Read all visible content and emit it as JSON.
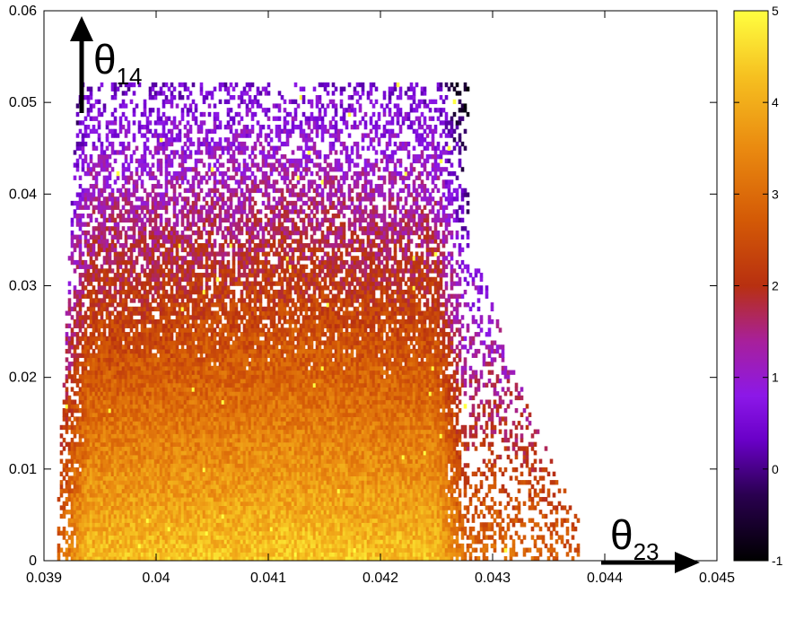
{
  "chart_data": {
    "type": "heatmap",
    "title": "",
    "xlabel": "θ23",
    "ylabel": "θ14",
    "xlim": [
      0.039,
      0.045
    ],
    "ylim": [
      0,
      0.06
    ],
    "x_ticks": [
      "0.039",
      "0.04",
      "0.041",
      "0.042",
      "0.043",
      "0.044",
      "0.045"
    ],
    "y_ticks": [
      "0",
      "0.01",
      "0.02",
      "0.03",
      "0.04",
      "0.05",
      "0.06"
    ],
    "x_tick_values": [
      0.039,
      0.04,
      0.041,
      0.042,
      0.043,
      0.044,
      0.045
    ],
    "y_tick_values": [
      0,
      0.01,
      0.02,
      0.03,
      0.04,
      0.05,
      0.06
    ],
    "colorbar": {
      "range": [
        -1,
        5
      ],
      "ticks": [
        "-1",
        "0",
        "1",
        "2",
        "3",
        "4",
        "5"
      ],
      "tick_values": [
        -1,
        0,
        1,
        2,
        3,
        4,
        5
      ],
      "colormap": "gnuplot (black-purple-red-orange-yellow)"
    },
    "density_region": {
      "main_body": {
        "x_range": [
          0.0393,
          0.0428
        ],
        "y_range": [
          0,
          0.052
        ]
      },
      "right_tail": {
        "x_range": [
          0.0428,
          0.0438
        ],
        "y_range": [
          0,
          0.032
        ]
      },
      "peak_value_approx": 4.2,
      "low_edge_value_approx": 0.5
    },
    "grid": false,
    "legend": "colorbar-right",
    "colors": {
      "background": "#ffffff",
      "axis": "#000000"
    }
  }
}
